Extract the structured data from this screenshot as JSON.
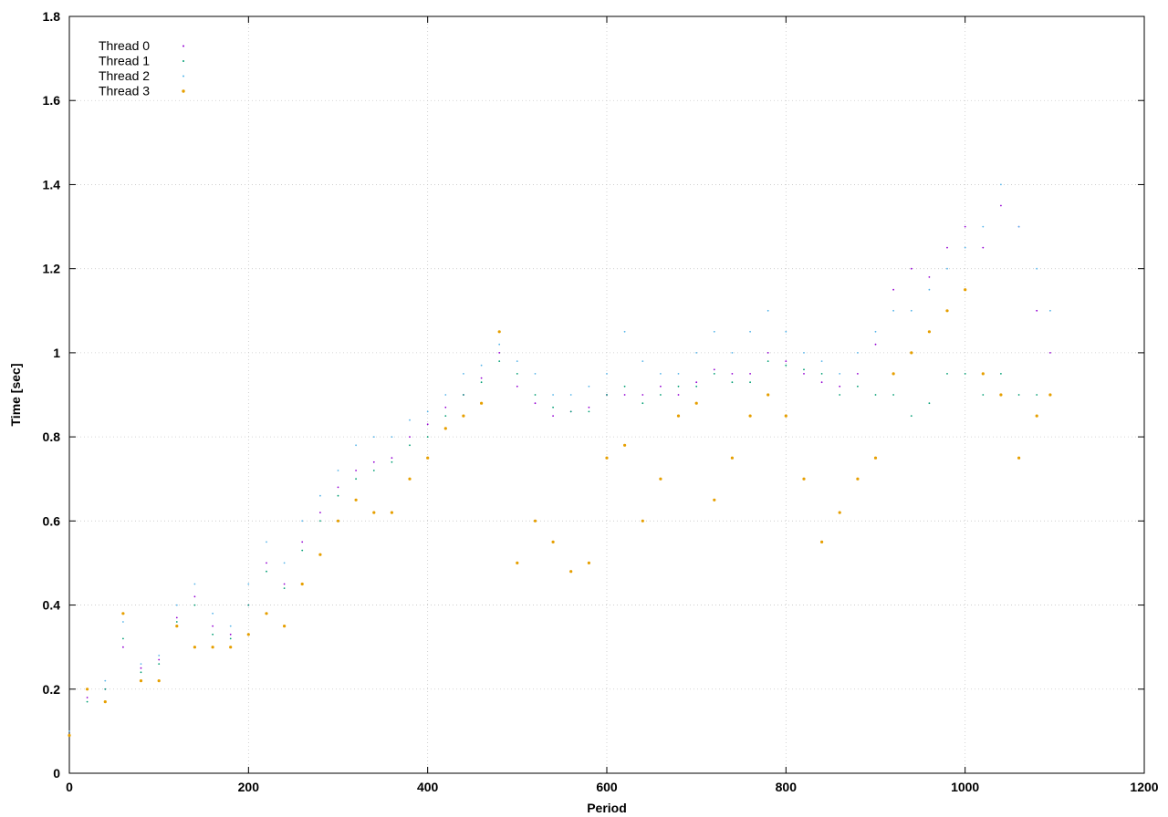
{
  "chart_data": {
    "type": "scatter",
    "xlabel": "Period",
    "ylabel": "Time [sec]",
    "xlim": [
      0,
      1200
    ],
    "ylim": [
      0,
      1.8
    ],
    "x_ticks": [
      0,
      200,
      400,
      600,
      800,
      1000,
      1200
    ],
    "y_ticks": [
      0,
      0.2,
      0.4,
      0.6,
      0.8,
      1,
      1.2,
      1.4,
      1.6,
      1.8
    ],
    "x_tick_labels": [
      "0",
      "200",
      "400",
      "600",
      "800",
      "1000",
      "1200"
    ],
    "y_tick_labels": [
      "0",
      "0.2",
      "0.4",
      "0.6",
      "0.8",
      "1",
      "1.2",
      "1.4",
      "1.6",
      "1.8"
    ],
    "grid": true,
    "legend_position": "top-left",
    "series": [
      {
        "name": "Thread 0",
        "color": "#9400d3",
        "x": [
          0,
          20,
          40,
          60,
          80,
          100,
          120,
          140,
          160,
          180,
          200,
          220,
          240,
          260,
          280,
          300,
          320,
          340,
          360,
          380,
          400,
          420,
          440,
          460,
          480,
          500,
          520,
          540,
          560,
          580,
          600,
          620,
          640,
          660,
          680,
          700,
          720,
          740,
          760,
          780,
          800,
          820,
          840,
          860,
          880,
          900,
          920,
          940,
          960,
          980,
          1000,
          1020,
          1040,
          1060,
          1080,
          1095
        ],
        "y": [
          0.09,
          0.18,
          0.2,
          0.3,
          0.25,
          0.27,
          0.37,
          0.42,
          0.35,
          0.33,
          0.4,
          0.5,
          0.45,
          0.55,
          0.62,
          0.68,
          0.72,
          0.74,
          0.75,
          0.8,
          0.83,
          0.87,
          0.9,
          0.94,
          1.0,
          0.92,
          0.88,
          0.85,
          0.86,
          0.87,
          0.9,
          0.9,
          0.9,
          0.92,
          0.9,
          0.93,
          0.96,
          0.95,
          0.95,
          1.0,
          0.98,
          0.95,
          0.93,
          0.92,
          0.95,
          1.02,
          1.15,
          1.2,
          1.18,
          1.25,
          1.3,
          1.25,
          1.35,
          1.3,
          1.1,
          1.0
        ]
      },
      {
        "name": "Thread 1",
        "color": "#009e73",
        "x": [
          0,
          20,
          40,
          60,
          80,
          100,
          120,
          140,
          160,
          180,
          200,
          220,
          240,
          260,
          280,
          300,
          320,
          340,
          360,
          380,
          400,
          420,
          440,
          460,
          480,
          500,
          520,
          540,
          560,
          580,
          600,
          620,
          640,
          660,
          680,
          700,
          720,
          740,
          760,
          780,
          800,
          820,
          840,
          860,
          880,
          900,
          920,
          940,
          960,
          980,
          1000,
          1020,
          1040,
          1060,
          1080,
          1095
        ],
        "y": [
          0.09,
          0.17,
          0.2,
          0.32,
          0.24,
          0.26,
          0.36,
          0.4,
          0.33,
          0.32,
          0.4,
          0.48,
          0.44,
          0.53,
          0.6,
          0.66,
          0.7,
          0.72,
          0.74,
          0.78,
          0.8,
          0.85,
          0.9,
          0.93,
          0.98,
          0.95,
          0.9,
          0.87,
          0.86,
          0.86,
          0.9,
          0.92,
          0.88,
          0.9,
          0.92,
          0.92,
          0.95,
          0.93,
          0.93,
          0.98,
          0.97,
          0.96,
          0.95,
          0.9,
          0.92,
          0.9,
          0.9,
          0.85,
          0.88,
          0.95,
          0.95,
          0.9,
          0.95,
          0.9,
          0.9,
          0.9
        ]
      },
      {
        "name": "Thread 2",
        "color": "#56b4e9",
        "x": [
          0,
          20,
          40,
          60,
          80,
          100,
          120,
          140,
          160,
          180,
          200,
          220,
          240,
          260,
          280,
          300,
          320,
          340,
          360,
          380,
          400,
          420,
          440,
          460,
          480,
          500,
          520,
          540,
          560,
          580,
          600,
          620,
          640,
          660,
          680,
          700,
          720,
          740,
          760,
          780,
          800,
          820,
          840,
          860,
          880,
          900,
          920,
          940,
          960,
          980,
          1000,
          1020,
          1040,
          1060,
          1080,
          1095
        ],
        "y": [
          0.1,
          0.2,
          0.22,
          0.36,
          0.26,
          0.28,
          0.4,
          0.45,
          0.38,
          0.35,
          0.45,
          0.55,
          0.5,
          0.6,
          0.66,
          0.72,
          0.78,
          0.8,
          0.8,
          0.84,
          0.86,
          0.9,
          0.95,
          0.97,
          1.02,
          0.98,
          0.95,
          0.9,
          0.9,
          0.92,
          0.95,
          1.05,
          0.98,
          0.95,
          0.95,
          1.0,
          1.05,
          1.0,
          1.05,
          1.1,
          1.05,
          1.0,
          0.98,
          0.95,
          1.0,
          1.05,
          1.1,
          1.1,
          1.15,
          1.2,
          1.25,
          1.3,
          1.4,
          1.3,
          1.2,
          1.1
        ]
      },
      {
        "name": "Thread 3",
        "color": "#e69f00",
        "x": [
          0,
          20,
          40,
          60,
          80,
          100,
          120,
          140,
          160,
          180,
          200,
          220,
          240,
          260,
          280,
          300,
          320,
          340,
          360,
          380,
          400,
          420,
          440,
          460,
          480,
          500,
          520,
          540,
          560,
          580,
          600,
          620,
          640,
          660,
          680,
          700,
          720,
          740,
          760,
          780,
          800,
          820,
          840,
          860,
          880,
          900,
          920,
          940,
          960,
          980,
          1000,
          1020,
          1040,
          1060,
          1080,
          1095
        ],
        "y": [
          0.09,
          0.2,
          0.17,
          0.38,
          0.22,
          0.22,
          0.35,
          0.3,
          0.3,
          0.3,
          0.33,
          0.38,
          0.35,
          0.45,
          0.52,
          0.6,
          0.65,
          0.62,
          0.62,
          0.7,
          0.75,
          0.82,
          0.85,
          0.88,
          1.05,
          0.5,
          0.6,
          0.55,
          0.48,
          0.5,
          0.75,
          0.78,
          0.6,
          0.7,
          0.85,
          0.88,
          0.65,
          0.75,
          0.85,
          0.9,
          0.85,
          0.7,
          0.55,
          0.62,
          0.7,
          0.75,
          0.95,
          1.0,
          1.05,
          1.1,
          1.15,
          0.95,
          0.9,
          0.75,
          0.85,
          0.9
        ]
      }
    ]
  }
}
